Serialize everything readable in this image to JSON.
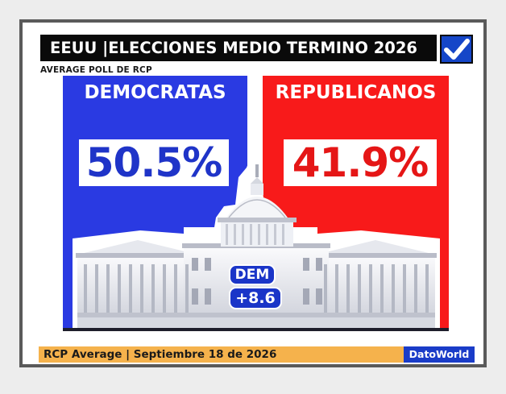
{
  "header": {
    "title": "EEUU |ELECCIONES MEDIO TERMINO 2026",
    "subtitle": "AVERAGE POLL DE RCP"
  },
  "panels": [
    {
      "party": "DEMOCRATAS",
      "percent": "50.5%",
      "color": "#2a3ae2"
    },
    {
      "party": "REPUBLICANOS",
      "percent": "41.9%",
      "color": "#f81a1a"
    }
  ],
  "margin": {
    "party": "DEM",
    "value": "+8.6"
  },
  "footer": {
    "text": "RCP Average | Septiembre 18 de 2026",
    "brand": "DatoWorld"
  },
  "icons": {
    "check": "checkmark-icon",
    "building": "capitol-building"
  }
}
